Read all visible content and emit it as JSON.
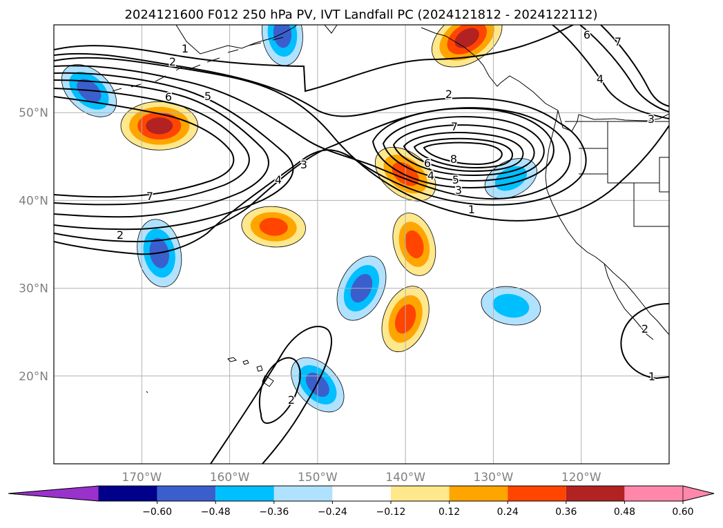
{
  "chart_data": {
    "type": "contour-map",
    "title": "2024121600 F012 250 hPa PV, IVT Landfall PC (2024121812 - 2024122112)",
    "map": {
      "lon_range": [
        -180,
        -110
      ],
      "lat_range": [
        10,
        60
      ],
      "lon_ticks": [
        -170,
        -160,
        -150,
        -140,
        -130,
        -120
      ],
      "lon_tick_labels": [
        "170°W",
        "160°W",
        "150°W",
        "140°W",
        "130°W",
        "120°W"
      ],
      "lat_ticks": [
        20,
        30,
        40,
        50
      ],
      "lat_tick_labels": [
        "20°N",
        "30°N",
        "40°N",
        "50°N"
      ],
      "grid": true
    },
    "colorbar": {
      "orientation": "horizontal",
      "extend": "both",
      "boundaries": [
        -0.6,
        -0.48,
        -0.36,
        -0.24,
        -0.12,
        0.12,
        0.24,
        0.36,
        0.48,
        0.6
      ],
      "tick_labels": [
        "−0.60",
        "−0.48",
        "−0.36",
        "−0.24",
        "−0.12",
        "0.12",
        "0.24",
        "0.36",
        "0.48",
        "0.60"
      ],
      "colors": [
        "#9932cc",
        "#00008b",
        "#3a5fcd",
        "#00bfff",
        "#b0e2ff",
        "#ffffff",
        "#ffe88c",
        "#ffa500",
        "#ff4500",
        "#b22222",
        "#ff88aa"
      ]
    },
    "pv_contour_labels": [
      "1",
      "2",
      "3",
      "4",
      "5",
      "6",
      "7",
      "8"
    ],
    "anomaly_areas": [
      {
        "lon": -168,
        "lat": 48.5,
        "value": 0.55
      },
      {
        "lon": -140,
        "lat": 43,
        "value": 0.45
      },
      {
        "lon": -139,
        "lat": 35,
        "value": 0.4
      },
      {
        "lon": -140,
        "lat": 26.5,
        "value": 0.45
      },
      {
        "lon": -133,
        "lat": 58.5,
        "value": 0.55
      },
      {
        "lon": -155,
        "lat": 37,
        "value": 0.4
      },
      {
        "lon": -176,
        "lat": 52.5,
        "value": -0.4
      },
      {
        "lon": -168,
        "lat": 34,
        "value": -0.45
      },
      {
        "lon": -145,
        "lat": 30,
        "value": -0.45
      },
      {
        "lon": -128,
        "lat": 42.5,
        "value": -0.3
      },
      {
        "lon": -128,
        "lat": 28,
        "value": -0.35
      },
      {
        "lon": -150,
        "lat": 19,
        "value": -0.4
      },
      {
        "lon": -154,
        "lat": 59,
        "value": -0.4
      }
    ]
  }
}
